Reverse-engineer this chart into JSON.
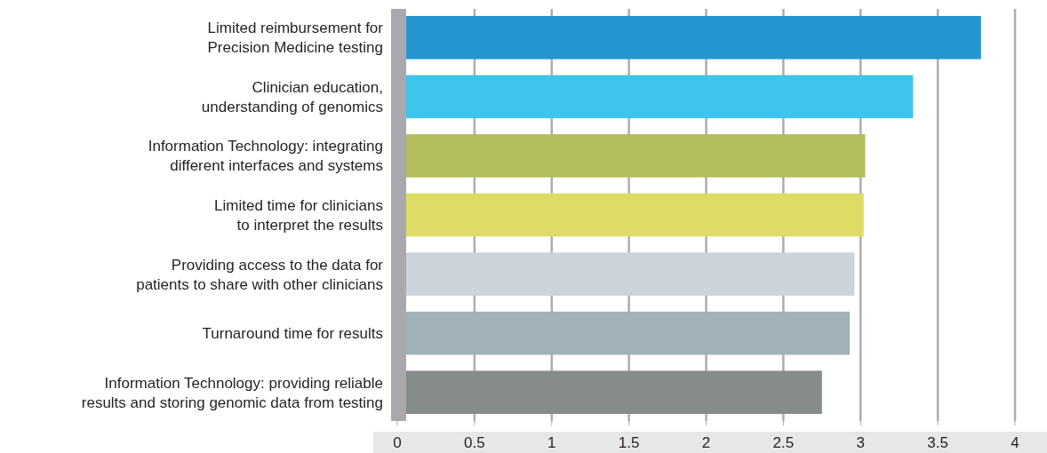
{
  "chart_data": {
    "type": "bar",
    "orientation": "horizontal",
    "categories": [
      "Limited reimbursement for Precision Medicine testing",
      "Clinician education, understanding of genomics",
      "Information Technology: integrating different interfaces and systems",
      "Limited time for clinicians to interpret the results",
      "Providing access to the data for patients to share with other clinicians",
      "Turnaround time for results",
      "Information Technology: providing reliable results and storing genomic data from testing"
    ],
    "values": [
      3.78,
      3.34,
      3.03,
      3.02,
      2.96,
      2.93,
      2.75
    ],
    "colors": [
      "#2595d0",
      "#3ec5ec",
      "#b3bd5c",
      "#dedc64",
      "#cbd4da",
      "#a0b2b8",
      "#868b8b"
    ],
    "xlim": [
      0,
      4
    ],
    "xticks": [
      0,
      0.5,
      1,
      1.5,
      2,
      2.5,
      3,
      3.5,
      4
    ],
    "grid": "x"
  }
}
